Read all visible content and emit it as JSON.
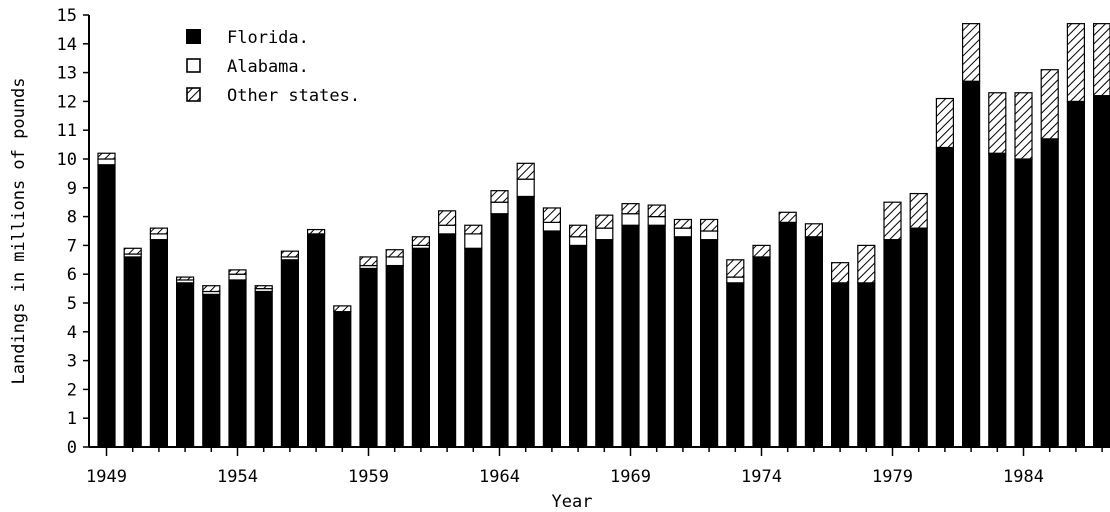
{
  "chart_data": {
    "type": "bar",
    "stacked": true,
    "xlabel": "Year",
    "ylabel": "Landings in millions of pounds",
    "ylim": [
      0,
      15
    ],
    "yticks": [
      0,
      1,
      2,
      3,
      4,
      5,
      6,
      7,
      8,
      9,
      10,
      11,
      12,
      13,
      14,
      15
    ],
    "xtick_labels": [
      "1949",
      "1954",
      "1959",
      "1964",
      "1969",
      "1974",
      "1979",
      "1984"
    ],
    "categories": [
      "1949",
      "1950",
      "1951",
      "1952",
      "1953",
      "1954",
      "1955",
      "1956",
      "1957",
      "1958",
      "1959",
      "1960",
      "1961",
      "1962",
      "1963",
      "1964",
      "1965",
      "1966",
      "1967",
      "1968",
      "1969",
      "1970",
      "1971",
      "1972",
      "1973",
      "1974",
      "1975",
      "1976",
      "1977",
      "1978",
      "1979",
      "1980",
      "1981",
      "1982",
      "1983",
      "1984",
      "1985",
      "1986",
      "1987"
    ],
    "series": [
      {
        "name": "Florida.",
        "pattern": "solid",
        "values": [
          9.8,
          6.6,
          7.2,
          5.7,
          5.3,
          5.8,
          5.4,
          6.5,
          7.4,
          4.7,
          6.2,
          6.3,
          6.9,
          7.4,
          6.9,
          8.1,
          8.7,
          7.5,
          7.0,
          7.2,
          7.7,
          7.7,
          7.3,
          7.2,
          5.7,
          6.6,
          7.8,
          7.3,
          5.7,
          5.7,
          7.2,
          7.6,
          10.4,
          12.7,
          10.2,
          10.0,
          10.7,
          12.0,
          12.2
        ]
      },
      {
        "name": "Alabama.",
        "pattern": "white",
        "values": [
          0.2,
          0.1,
          0.2,
          0.1,
          0.1,
          0.2,
          0.1,
          0.1,
          0.0,
          0.0,
          0.1,
          0.3,
          0.1,
          0.3,
          0.5,
          0.4,
          0.6,
          0.3,
          0.3,
          0.4,
          0.4,
          0.3,
          0.3,
          0.3,
          0.2,
          0.0,
          0.0,
          0.0,
          0.0,
          0.0,
          0.0,
          0.0,
          0.0,
          0.0,
          0.0,
          0.0,
          0.0,
          0.0,
          0.0
        ]
      },
      {
        "name": "Other states.",
        "pattern": "hatched",
        "values": [
          0.2,
          0.2,
          0.2,
          0.1,
          0.2,
          0.15,
          0.1,
          0.2,
          0.15,
          0.2,
          0.3,
          0.25,
          0.3,
          0.5,
          0.3,
          0.4,
          0.55,
          0.5,
          0.4,
          0.45,
          0.35,
          0.4,
          0.3,
          0.4,
          0.6,
          0.4,
          0.35,
          0.45,
          0.7,
          1.3,
          1.3,
          1.2,
          1.7,
          2.0,
          2.1,
          2.3,
          2.4,
          2.7,
          2.5
        ]
      }
    ],
    "legend_position": "top-left"
  }
}
